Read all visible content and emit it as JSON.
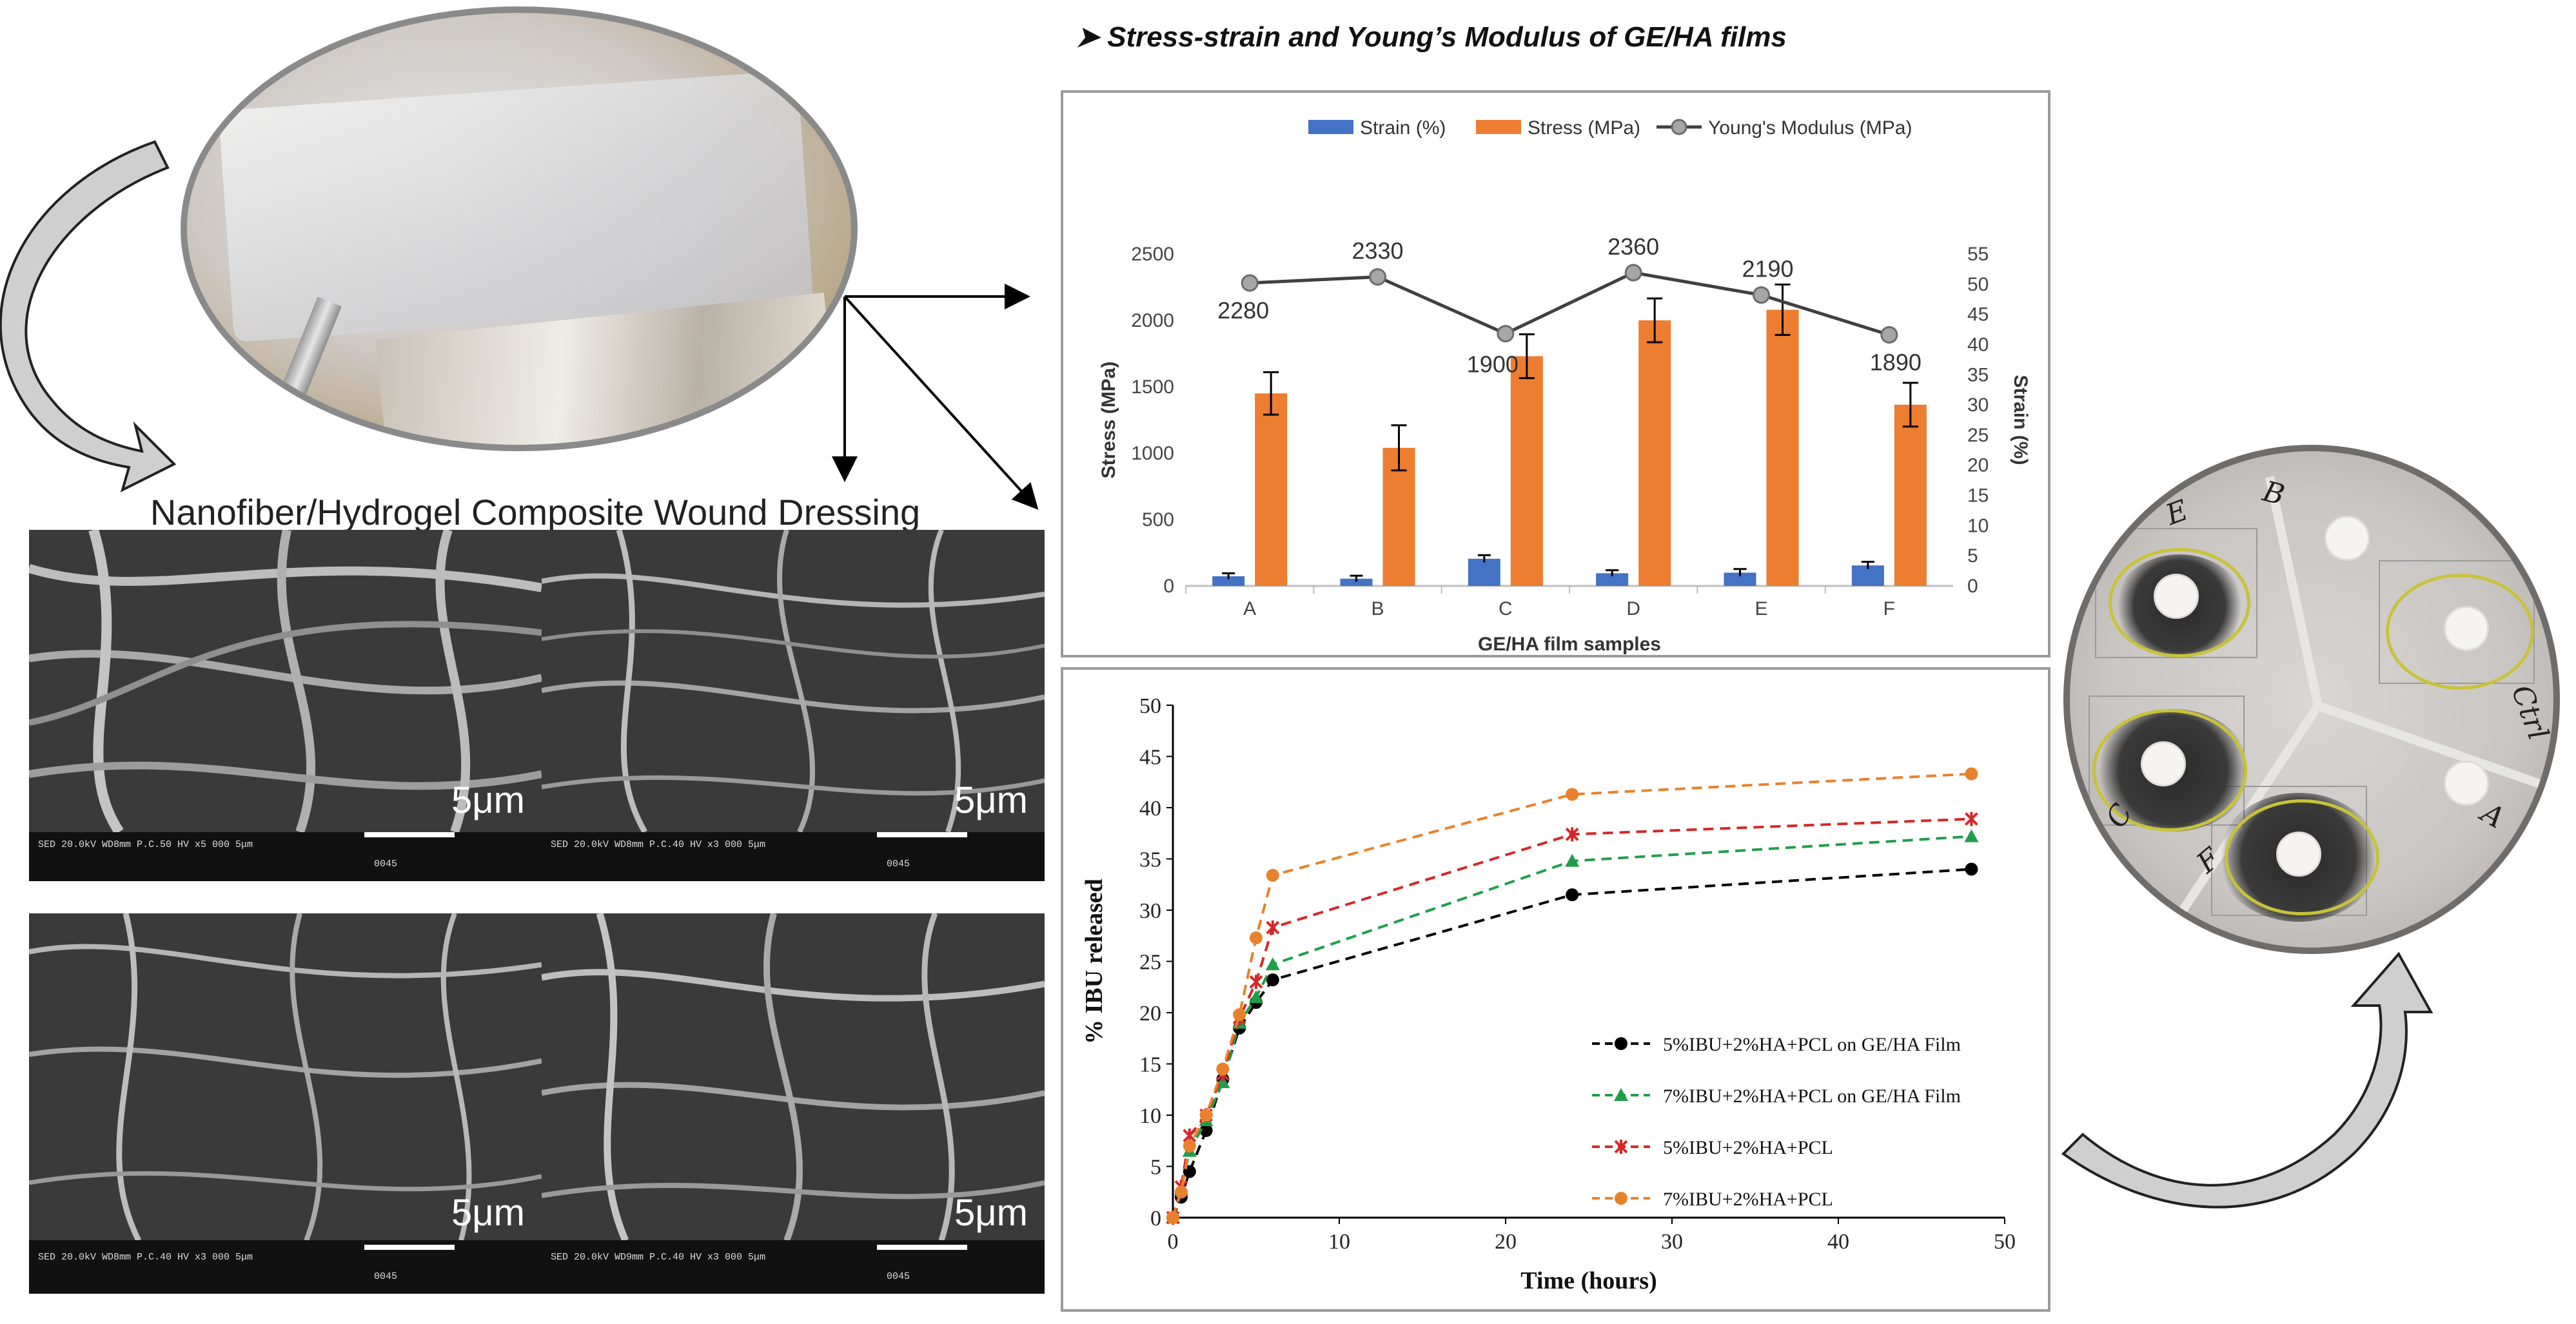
{
  "section_title": "➤  Stress-strain and Young’s Modulus of GE/HA films",
  "composite_title": "Nanofiber/Hydrogel Composite Wound Dressing",
  "sem_images": [
    {
      "scale": "5μm",
      "info": "SED 20.0kV WD8mm  P.C.50  HV   x5 000    5μm",
      "code": "0045"
    },
    {
      "scale": "5μm",
      "info": "SED 20.0kV WD8mm  P.C.40  HV   x3 000    5μm",
      "code": "0045"
    },
    {
      "scale": "5μm",
      "info": "SED 20.0kV WD8mm  P.C.40  HV   x3 000    5μm",
      "code": "0045"
    },
    {
      "scale": "5μm",
      "info": "SED 20.0kV WD9mm  P.C.40  HV   x3 000    5μm",
      "code": "0045"
    }
  ],
  "petri_labels": [
    "E",
    "B",
    "Ctrl",
    "A",
    "F",
    "C"
  ],
  "colors": {
    "strain": "#4472c4",
    "stress": "#ed7d31",
    "modulus": "#404040",
    "c5film": "#000000",
    "c7film": "#1f9e4a",
    "c5pcl": "#d62728",
    "c7pcl": "#e8822a"
  },
  "chart_data": [
    {
      "type": "bar",
      "title": "",
      "categories": [
        "A",
        "B",
        "C",
        "D",
        "E",
        "F"
      ],
      "xlabel": "GE/HA film samples",
      "ylabel": "Stress (MPa)",
      "ylabel_right": "Strain (%)",
      "ylim": [
        0,
        2500
      ],
      "ylim_right": [
        0,
        55
      ],
      "yticks": [
        0,
        500,
        1000,
        1500,
        2000,
        2500
      ],
      "yticks_right": [
        0,
        5,
        10,
        15,
        20,
        25,
        30,
        35,
        40,
        45,
        50,
        55
      ],
      "series": [
        {
          "name": "Strain (%)",
          "axis": "right",
          "values": [
            1.6,
            1.2,
            4.5,
            2.1,
            2.2,
            3.4
          ],
          "errors": [
            0.5,
            0.5,
            0.6,
            0.5,
            0.6,
            0.6
          ]
        },
        {
          "name": "Stress (MPa)",
          "axis": "left",
          "values": [
            1450,
            1040,
            1730,
            2000,
            2080,
            1365
          ],
          "errors": [
            160,
            170,
            165,
            165,
            190,
            165
          ]
        },
        {
          "name": "Young's Modulus (MPa)",
          "axis": "right",
          "kind": "line",
          "values": [
            50.2,
            51.2,
            41.8,
            51.9,
            48.2,
            41.6
          ],
          "labels": [
            "2280",
            "2330",
            "1900",
            "2360",
            "2190",
            "1890"
          ]
        }
      ]
    },
    {
      "type": "line",
      "title": "",
      "xlabel": "Time (hours)",
      "ylabel": "% IBU released",
      "xlim": [
        0,
        50
      ],
      "ylim": [
        0,
        50
      ],
      "xticks": [
        0,
        10,
        20,
        30,
        40,
        50
      ],
      "yticks": [
        0,
        5,
        10,
        15,
        20,
        25,
        30,
        35,
        40,
        45,
        50
      ],
      "x": [
        0,
        0.5,
        1,
        2,
        3,
        4,
        5,
        6,
        24,
        48
      ],
      "series": [
        {
          "name": "5%IBU+2%HA+PCL on GE/HA Film",
          "marker": "circle",
          "values": [
            0,
            2,
            4.5,
            8.5,
            13.5,
            18.5,
            21,
            23.2,
            31.5,
            34
          ]
        },
        {
          "name": "7%IBU+2%HA+PCL on GE/HA Film",
          "marker": "triangle",
          "values": [
            0,
            2.8,
            6.5,
            9.5,
            13.2,
            19,
            21.5,
            24.7,
            34.8,
            37.2
          ]
        },
        {
          "name": "5%IBU+2%HA+PCL",
          "marker": "cross",
          "values": [
            0,
            3,
            8,
            10,
            14,
            19.5,
            23,
            28.3,
            37.4,
            38.9
          ]
        },
        {
          "name": "7%IBU+2%HA+PCL",
          "marker": "circle",
          "values": [
            0,
            2.5,
            7,
            10,
            14.5,
            19.8,
            27.3,
            33.4,
            41.3,
            43.3
          ]
        }
      ]
    }
  ]
}
